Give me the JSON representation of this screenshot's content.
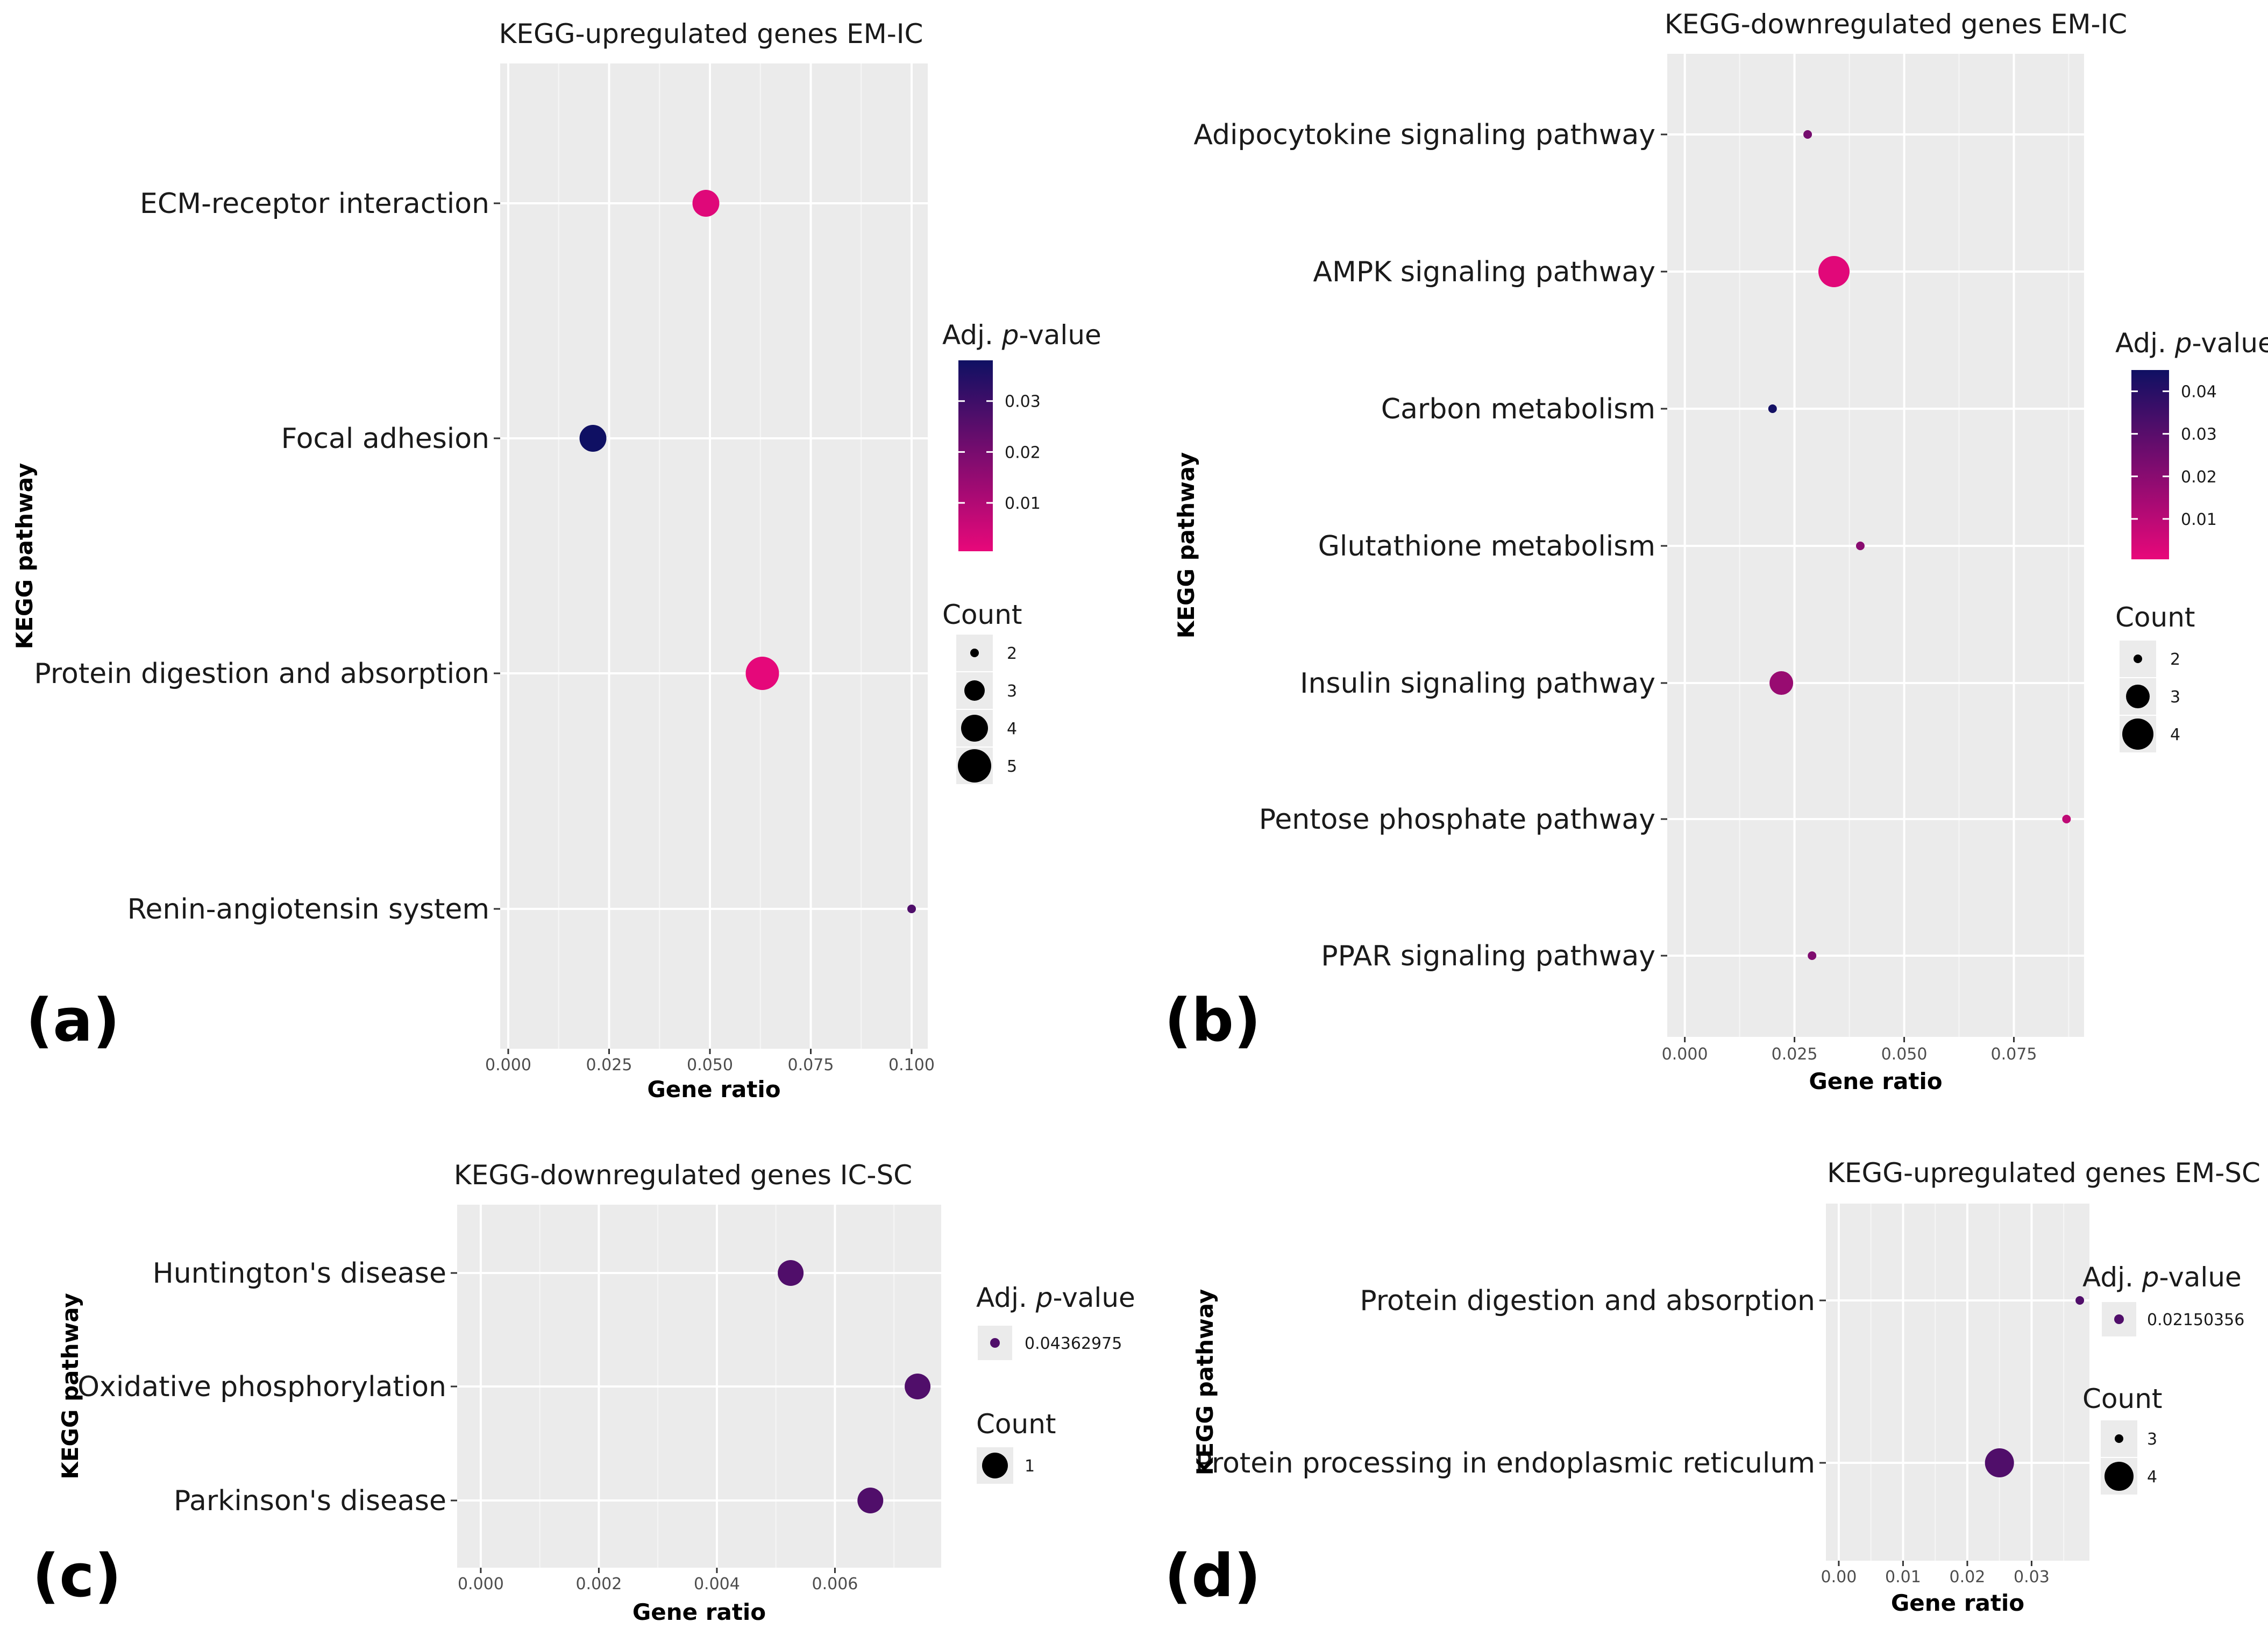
{
  "colors": {
    "low": "#e8087a",
    "high": "#0f1063",
    "panel_bg": "#ebebeb",
    "grid": "#ffffff"
  },
  "chart_data": [
    {
      "panel_label": "(a)",
      "type": "scatter",
      "title": "KEGG-upregulated genes EM-IC",
      "xlabel": "Gene ratio",
      "ylabel": "KEGG pathway",
      "xlim": [
        -0.002,
        0.104
      ],
      "xticks": [
        "0.000",
        "0.025",
        "0.050",
        "0.075",
        "0.100"
      ],
      "categories": [
        "ECM-receptor interaction",
        "Focal adhesion",
        "Protein digestion and absorption",
        "Renin-angiotensin system"
      ],
      "points": [
        {
          "pathway": "ECM-receptor interaction",
          "gene_ratio": 0.049,
          "count": 4,
          "padj": 0.002
        },
        {
          "pathway": "Focal adhesion",
          "gene_ratio": 0.021,
          "count": 4,
          "padj": 0.038
        },
        {
          "pathway": "Protein digestion and absorption",
          "gene_ratio": 0.063,
          "count": 5,
          "padj": 0.001
        },
        {
          "pathway": "Renin-angiotensin system",
          "gene_ratio": 0.1,
          "count": 2,
          "padj": 0.027
        }
      ],
      "color_legend": {
        "title": "Adj. p-value",
        "ticks": [
          "0.03",
          "0.02",
          "0.01"
        ],
        "tick_values": [
          0.03,
          0.02,
          0.01
        ],
        "range": [
          0.0005,
          0.038
        ]
      },
      "size_legend": {
        "title": "Count",
        "labels": [
          "2",
          "3",
          "4",
          "5"
        ]
      }
    },
    {
      "panel_label": "(b)",
      "type": "scatter",
      "title": "KEGG-downregulated genes EM-IC",
      "xlabel": "Gene ratio",
      "ylabel": "KEGG pathway",
      "xlim": [
        -0.004,
        0.091
      ],
      "xticks": [
        "0.000",
        "0.025",
        "0.050",
        "0.075"
      ],
      "categories": [
        "Adipocytokine signaling pathway",
        "AMPK signaling pathway",
        "Carbon metabolism",
        "Glutathione metabolism",
        "Insulin signaling pathway",
        "Pentose phosphate pathway",
        "PPAR signaling pathway"
      ],
      "points": [
        {
          "pathway": "Adipocytokine signaling pathway",
          "gene_ratio": 0.028,
          "count": 2,
          "padj": 0.024
        },
        {
          "pathway": "AMPK signaling pathway",
          "gene_ratio": 0.034,
          "count": 4,
          "padj": 0.002
        },
        {
          "pathway": "Carbon metabolism",
          "gene_ratio": 0.02,
          "count": 2,
          "padj": 0.044
        },
        {
          "pathway": "Glutathione metabolism",
          "gene_ratio": 0.04,
          "count": 2,
          "padj": 0.02
        },
        {
          "pathway": "Insulin signaling pathway",
          "gene_ratio": 0.022,
          "count": 3,
          "padj": 0.017
        },
        {
          "pathway": "Pentose phosphate pathway",
          "gene_ratio": 0.087,
          "count": 2,
          "padj": 0.009
        },
        {
          "pathway": "PPAR signaling pathway",
          "gene_ratio": 0.029,
          "count": 2,
          "padj": 0.022
        }
      ],
      "color_legend": {
        "title": "Adj. p-value",
        "ticks": [
          "0.04",
          "0.03",
          "0.02",
          "0.01"
        ],
        "tick_values": [
          0.04,
          0.03,
          0.02,
          0.01
        ],
        "range": [
          0.0005,
          0.045
        ]
      },
      "size_legend": {
        "title": "Count",
        "labels": [
          "2",
          "3",
          "4"
        ]
      }
    },
    {
      "panel_label": "(c)",
      "type": "scatter",
      "title": "KEGG-downregulated genes IC-SC",
      "xlabel": "Gene ratio",
      "ylabel": "KEGG pathway",
      "xlim": [
        -0.0004,
        0.0078
      ],
      "xticks": [
        "0.000",
        "0.002",
        "0.004",
        "0.006"
      ],
      "categories": [
        "Huntington's disease",
        "Oxidative phosphorylation",
        "Parkinson's disease"
      ],
      "points": [
        {
          "pathway": "Huntington's disease",
          "gene_ratio": 0.00525,
          "count": 1,
          "padj": 0.04362975
        },
        {
          "pathway": "Oxidative phosphorylation",
          "gene_ratio": 0.0074,
          "count": 1,
          "padj": 0.04362975
        },
        {
          "pathway": "Parkinson's disease",
          "gene_ratio": 0.0066,
          "count": 1,
          "padj": 0.04362975
        }
      ],
      "color_legend": {
        "title": "Adj. p-value",
        "labels": [
          "0.04362975"
        ]
      },
      "size_legend": {
        "title": "Count",
        "labels": [
          "1"
        ]
      }
    },
    {
      "panel_label": "(d)",
      "type": "scatter",
      "title": "KEGG-upregulated genes EM-SC",
      "xlabel": "Gene ratio",
      "ylabel": "KEGG pathway",
      "xlim": [
        -0.002,
        0.039
      ],
      "xticks": [
        "0.00",
        "0.01",
        "0.02",
        "0.03"
      ],
      "categories": [
        "Protein digestion and absorption",
        "Protein processing in endoplasmic reticulum"
      ],
      "points": [
        {
          "pathway": "Protein digestion and absorption",
          "gene_ratio": 0.0375,
          "count": 3,
          "padj": 0.02150356
        },
        {
          "pathway": "Protein processing in endoplasmic reticulum",
          "gene_ratio": 0.025,
          "count": 4,
          "padj": 0.02150356
        }
      ],
      "color_legend": {
        "title": "Adj. p-value",
        "labels": [
          "0.02150356"
        ]
      },
      "size_legend": {
        "title": "Count",
        "labels": [
          "3",
          "4"
        ]
      }
    }
  ]
}
